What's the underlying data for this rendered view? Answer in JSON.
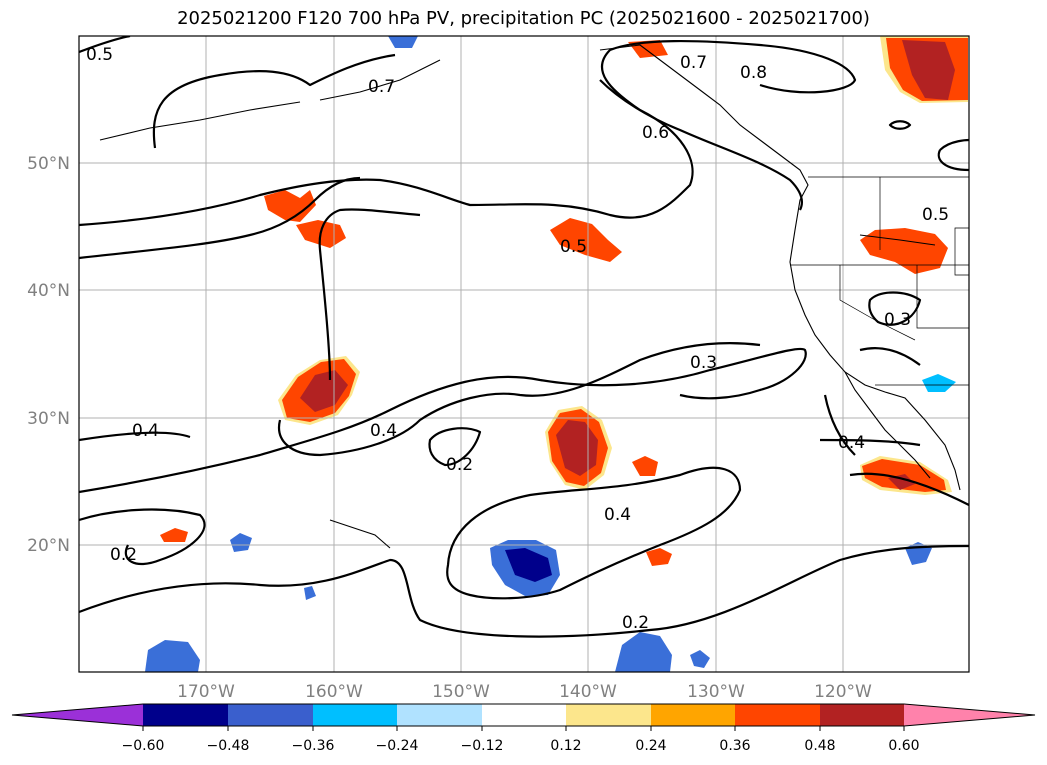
{
  "title": "2025021200 F120 700 hPa PV, precipitation PC (2025021600 - 2025021700)",
  "map": {
    "lon_labels": [
      "170°W",
      "160°W",
      "150°W",
      "140°W",
      "130°W",
      "120°W"
    ],
    "lat_labels": [
      "50°N",
      "40°N",
      "30°N",
      "20°N"
    ],
    "contour_labels": [
      "0.5",
      "0.7",
      "0.7",
      "0.8",
      "0.6",
      "0.5",
      "0.5",
      "0.3",
      "0.3",
      "0.4",
      "0.4",
      "0.4",
      "0.2",
      "0.4",
      "0.2",
      "0.2"
    ]
  },
  "colorbar": {
    "ticks": [
      "−0.60",
      "−0.48",
      "−0.36",
      "−0.24",
      "−0.12",
      "0.12",
      "0.24",
      "0.36",
      "0.48",
      "0.60"
    ],
    "colors": [
      "#9b30d8",
      "#00008b",
      "#3a5fcd",
      "#00bfff",
      "#b0e2ff",
      "#ffffff",
      "#fce68c",
      "#ffa500",
      "#ff4500",
      "#b22222",
      "#ff82ab"
    ]
  },
  "precip_colors": {
    "pos_outer": "#fce68c",
    "pos_mid": "#ff4500",
    "pos_inner": "#b22222",
    "neg_outer": "#3a6fd8",
    "neg_inner": "#00008b",
    "neg_light": "#00bfff"
  }
}
